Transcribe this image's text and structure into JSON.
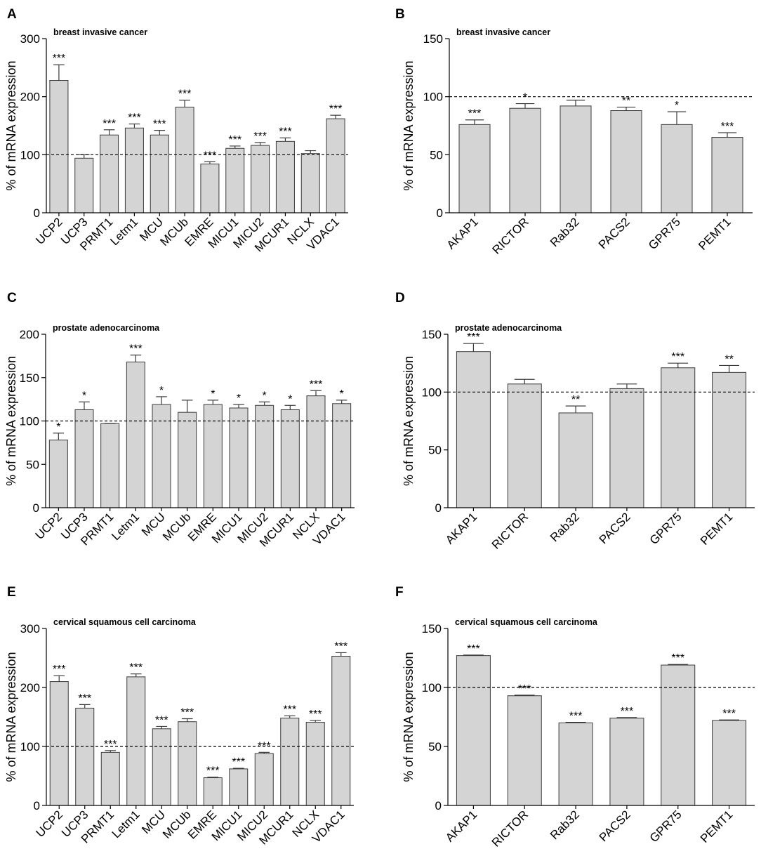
{
  "figure": {
    "panels": [
      "A",
      "B",
      "C",
      "D",
      "E",
      "F"
    ]
  },
  "chart_data": [
    {
      "panel": "A",
      "type": "bar",
      "title": "breast invasive cancer",
      "ylabel": "% of mRNA expression",
      "xlabel": "",
      "ylim": [
        0,
        300
      ],
      "yticks": [
        "0",
        "100",
        "200",
        "300"
      ],
      "reference_line": 100,
      "categories": [
        "UCP2",
        "UCP3",
        "PRMT1",
        "Letm1",
        "MCU",
        "MCUb",
        "EMRE",
        "MICU1",
        "MICU2",
        "MCUR1",
        "NCLX",
        "VDAC1"
      ],
      "values": [
        228,
        94,
        134,
        146,
        134,
        182,
        84,
        111,
        116,
        123,
        102,
        162
      ],
      "errors": [
        27,
        6,
        9,
        7,
        8,
        12,
        4,
        4,
        5,
        6,
        5,
        6
      ],
      "significance": [
        "***",
        "",
        "***",
        "***",
        "***",
        "***",
        "***",
        "***",
        "***",
        "***",
        "",
        "***"
      ]
    },
    {
      "panel": "B",
      "type": "bar",
      "title": "breast invasive cancer",
      "ylabel": "% of mRNA expression",
      "xlabel": "",
      "ylim": [
        0,
        150
      ],
      "yticks": [
        "0",
        "50",
        "100",
        "150"
      ],
      "reference_line": 100,
      "categories": [
        "AKAP1",
        "RICTOR",
        "Rab32",
        "PACS2",
        "GPR75",
        "PEMT1"
      ],
      "values": [
        76,
        90,
        92,
        88,
        76,
        65
      ],
      "errors": [
        4,
        4,
        5,
        3,
        11,
        4
      ],
      "significance": [
        "***",
        "*",
        "",
        "**",
        "*",
        "***"
      ]
    },
    {
      "panel": "C",
      "type": "bar",
      "title": "prostate adenocarcinoma",
      "ylabel": "% of mRNA expression",
      "xlabel": "",
      "ylim": [
        0,
        200
      ],
      "yticks": [
        "0",
        "50",
        "100",
        "150",
        "200"
      ],
      "reference_line": 100,
      "categories": [
        "UCP2",
        "UCP3",
        "PRMT1",
        "Letm1",
        "MCU",
        "MCUb",
        "EMRE",
        "MICU1",
        "MICU2",
        "MCUR1",
        "NCLX",
        "VDAC1"
      ],
      "values": [
        78,
        113,
        97,
        168,
        119,
        110,
        119,
        115,
        118,
        113,
        129,
        120
      ],
      "errors": [
        8,
        9,
        0,
        8,
        9,
        14,
        5,
        4,
        4,
        5,
        6,
        4
      ],
      "significance": [
        "*",
        "*",
        "",
        "***",
        "*",
        "",
        "*",
        "*",
        "*",
        "*",
        "***",
        "*"
      ]
    },
    {
      "panel": "D",
      "type": "bar",
      "title": "prostate adenocarcinoma",
      "ylabel": "% of mRNA expression",
      "xlabel": "",
      "ylim": [
        0,
        150
      ],
      "yticks": [
        "0",
        "50",
        "100",
        "150"
      ],
      "reference_line": 100,
      "categories": [
        "AKAP1",
        "RICTOR",
        "Rab32",
        "PACS2",
        "GPR75",
        "PEMT1"
      ],
      "values": [
        135,
        107,
        82,
        103,
        121,
        117
      ],
      "errors": [
        7,
        4,
        6,
        4,
        4,
        6
      ],
      "significance": [
        "***",
        "",
        "**",
        "",
        "***",
        "**"
      ]
    },
    {
      "panel": "E",
      "type": "bar",
      "title": "cervical squamous cell carcinoma",
      "ylabel": "% of mRNA expression",
      "xlabel": "",
      "ylim": [
        0,
        300
      ],
      "yticks": [
        "0",
        "100",
        "200",
        "300"
      ],
      "reference_line": 100,
      "categories": [
        "UCP2",
        "UCP3",
        "PRMT1",
        "Letm1",
        "MCU",
        "MCUb",
        "EMRE",
        "MICU1",
        "MICU2",
        "MCUR1",
        "NCLX",
        "VDAC1"
      ],
      "values": [
        210,
        165,
        90,
        218,
        130,
        142,
        47,
        62,
        88,
        148,
        141,
        253
      ],
      "errors": [
        10,
        6,
        3,
        5,
        4,
        5,
        1,
        1,
        2,
        4,
        3,
        6
      ],
      "significance": [
        "***",
        "***",
        "***",
        "***",
        "***",
        "***",
        "***",
        "***",
        "***",
        "***",
        "***",
        "***"
      ]
    },
    {
      "panel": "F",
      "type": "bar",
      "title": "cervical squamous cell carcinoma",
      "ylabel": "% of mRNA expression",
      "xlabel": "",
      "ylim": [
        0,
        150
      ],
      "yticks": [
        "0",
        "50",
        "100",
        "150"
      ],
      "reference_line": 100,
      "categories": [
        "AKAP1",
        "RICTOR",
        "Rab32",
        "PACS2",
        "GPR75",
        "PEMT1"
      ],
      "values": [
        127,
        93,
        70,
        74,
        119,
        72
      ],
      "errors": [
        0.5,
        0.5,
        0.5,
        0.5,
        0.5,
        0.5
      ],
      "significance": [
        "***",
        "***",
        "***",
        "***",
        "***",
        "***"
      ]
    }
  ]
}
